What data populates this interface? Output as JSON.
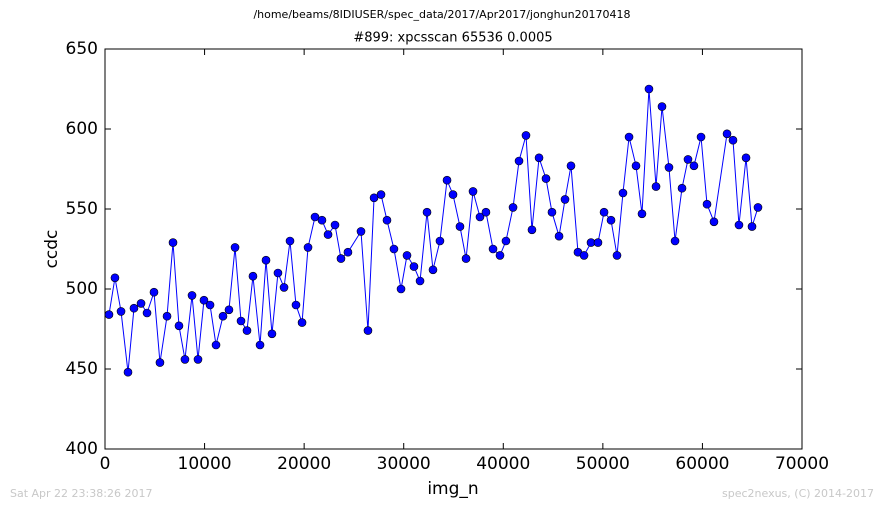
{
  "chart_data": {
    "type": "line",
    "suptitle": "/home/beams/8IDIUSER/spec_data/2017/Apr2017/jonghun20170418",
    "title": "#899: xpcsscan 65536 0.0005",
    "xlabel": "img_n",
    "ylabel": "ccdc",
    "footer_left": "Sat Apr 22 23:38:26 2017",
    "footer_right": "spec2nexus, (C) 2014-2017",
    "color": "#0000ff",
    "marker": "circle",
    "xlim": [
      0,
      70000
    ],
    "xticks": [
      0,
      10000,
      20000,
      30000,
      40000,
      50000,
      60000,
      70000
    ],
    "ylim": [
      400,
      650
    ],
    "yticks": [
      400,
      450,
      500,
      550,
      600,
      650
    ],
    "grid": false,
    "x": [
      400,
      1000,
      1610,
      2310,
      2910,
      3620,
      4220,
      4920,
      5520,
      6230,
      6830,
      7430,
      8030,
      8740,
      9340,
      9940,
      10550,
      11150,
      11850,
      12450,
      13060,
      13660,
      14260,
      14860,
      15570,
      16170,
      16770,
      17370,
      17980,
      18580,
      19180,
      19790,
      20390,
      21090,
      21790,
      22400,
      23100,
      23700,
      24400,
      25710,
      26410,
      27020,
      27720,
      28320,
      29020,
      29730,
      30330,
      31030,
      31640,
      32340,
      32940,
      33640,
      34350,
      34950,
      35650,
      36260,
      36960,
      37660,
      38260,
      38970,
      39670,
      40270,
      40980,
      41580,
      42280,
      42880,
      43590,
      44290,
      44890,
      45600,
      46200,
      46800,
      47500,
      48110,
      48810,
      49510,
      50120,
      50820,
      51420,
      52020,
      52630,
      53330,
      53930,
      54630,
      55340,
      55940,
      56640,
      57250,
      57950,
      58550,
      59150,
      59860,
      60460,
      61160,
      62470,
      63070,
      63670,
      64380,
      64980,
      65580
    ],
    "values": [
      484,
      507,
      486,
      448,
      488,
      491,
      485,
      498,
      454,
      483,
      529,
      477,
      456,
      496,
      456,
      493,
      490,
      465,
      483,
      487,
      526,
      480,
      474,
      508,
      465,
      518,
      472,
      510,
      501,
      530,
      490,
      479,
      526,
      545,
      543,
      534,
      540,
      519,
      523,
      536,
      474,
      557,
      559,
      543,
      525,
      500,
      521,
      514,
      505,
      548,
      512,
      530,
      568,
      559,
      539,
      519,
      561,
      545,
      548,
      525,
      521,
      530,
      551,
      580,
      596,
      537,
      582,
      569,
      548,
      533,
      556,
      577,
      523,
      521,
      529,
      529,
      548,
      543,
      521,
      560,
      595,
      577,
      547,
      625,
      564,
      614,
      576,
      530,
      563,
      581,
      577,
      595,
      553,
      542,
      597,
      593,
      540,
      582,
      539,
      551
    ]
  }
}
